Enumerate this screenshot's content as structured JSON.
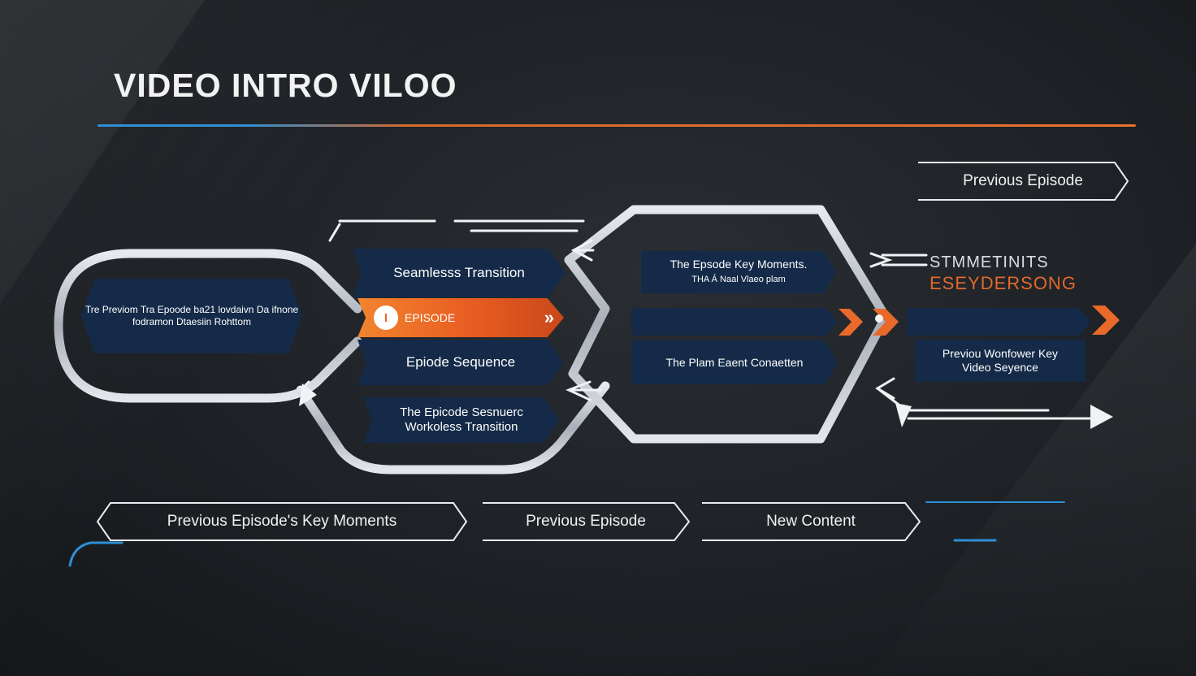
{
  "title": "VIDEO INTRO VILOO",
  "colors": {
    "accent_orange": "#e8692a",
    "accent_blue": "#2d8fd6",
    "node_navy": "#142a48"
  },
  "nodes": {
    "left_hex": "Tre Previom Tra Epoode ba21 lovdaivn Da ifnone fodramon Dtaesiin Rohttom",
    "seamless": "Seamlesss Transition",
    "episode_icon": "I",
    "episode": "EPISODE",
    "episode_chevrons": "»",
    "episode_sequence": "Epiode Sequence",
    "bottom_mid_line1": "The Epicode Sesnuerc",
    "bottom_mid_line2": "Workoless Transition",
    "key_moments_line1": "The Epsode Key Moments.",
    "key_moments_line2": "THA Á Naal Vlaeo plam",
    "plam": "The Plam Eaent Conaetten",
    "right_box_line1": "Previou Wonfower Key",
    "right_box_line2": "Video Seyence",
    "side_line1": "STMMETINITS",
    "side_line2": "ESEYDERSONG"
  },
  "buttons": {
    "top_right": "Previous Episode",
    "bottom_1": "Previous Episode's Key Moments",
    "bottom_2": "Previous Episode",
    "bottom_3": "New Content"
  }
}
